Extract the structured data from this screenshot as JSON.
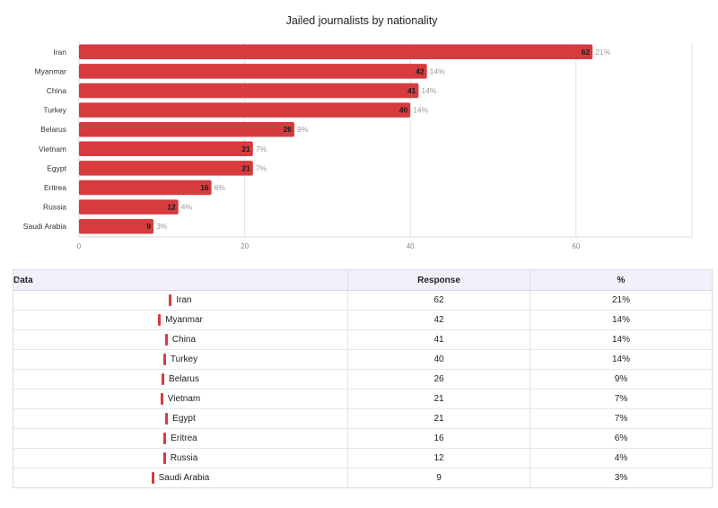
{
  "chart_data": {
    "type": "bar",
    "orientation": "horizontal",
    "title": "Jailed journalists by nationality",
    "xlabel": "",
    "ylabel": "",
    "categories": [
      "Iran",
      "Myanmar",
      "China",
      "Turkey",
      "Belarus",
      "Vietnam",
      "Egypt",
      "Eritrea",
      "Russia",
      "Saudi Arabia"
    ],
    "values": [
      62,
      42,
      41,
      40,
      26,
      21,
      21,
      16,
      12,
      9
    ],
    "percentages": [
      "21%",
      "14%",
      "14%",
      "14%",
      "9%",
      "7%",
      "7%",
      "6%",
      "4%",
      "3%"
    ],
    "xlim": [
      0,
      74
    ],
    "xticks": [
      0,
      20,
      40,
      60
    ],
    "grid": true,
    "legend": "none",
    "bar_color": "#d63b3e"
  },
  "table": {
    "headers": {
      "label": "Data",
      "response": "Response",
      "percent": "%"
    }
  }
}
